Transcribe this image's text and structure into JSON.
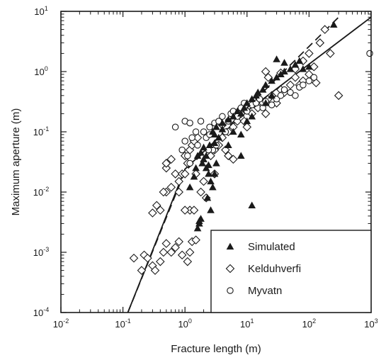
{
  "chart_data": {
    "type": "scatter",
    "title": "",
    "xlabel": "Fracture length (m)",
    "ylabel": "Maximum aperture (m)",
    "x_scale": "log",
    "y_scale": "log",
    "xlim": [
      0.01,
      1000
    ],
    "ylim": [
      0.0001,
      10
    ],
    "x_ticks": [
      {
        "value": 0.01,
        "base": "10",
        "exp": "-2"
      },
      {
        "value": 0.1,
        "base": "10",
        "exp": "-1"
      },
      {
        "value": 1,
        "base": "10",
        "exp": "0"
      },
      {
        "value": 10,
        "base": "10",
        "exp": "1"
      },
      {
        "value": 100,
        "base": "10",
        "exp": "2"
      },
      {
        "value": 1000,
        "base": "10",
        "exp": "3"
      }
    ],
    "y_ticks": [
      {
        "value": 0.0001,
        "base": "10",
        "exp": "-4"
      },
      {
        "value": 0.001,
        "base": "10",
        "exp": "-3"
      },
      {
        "value": 0.01,
        "base": "10",
        "exp": "-2"
      },
      {
        "value": 0.1,
        "base": "10",
        "exp": "-1"
      },
      {
        "value": 1,
        "base": "10",
        "exp": "0"
      },
      {
        "value": 10,
        "base": "10",
        "exp": "1"
      }
    ],
    "grid": false,
    "legend_position": "bottom-right",
    "series": [
      {
        "name": "Simulated",
        "marker": "filled-triangle",
        "points": [
          [
            1.6,
            0.0025
          ],
          [
            1.7,
            0.0033
          ],
          [
            1.8,
            0.0036
          ],
          [
            1.7,
            0.003
          ],
          [
            1.2,
            0.012
          ],
          [
            1.4,
            0.018
          ],
          [
            1.5,
            0.025
          ],
          [
            1.9,
            0.03
          ],
          [
            2.0,
            0.035
          ],
          [
            2.2,
            0.025
          ],
          [
            2.4,
            0.02
          ],
          [
            2.6,
            0.015
          ],
          [
            2.3,
            0.008
          ],
          [
            2.6,
            0.005
          ],
          [
            2.8,
            0.012
          ],
          [
            3.0,
            0.02
          ],
          [
            3.2,
            0.03
          ],
          [
            1.8,
            0.045
          ],
          [
            2.0,
            0.055
          ],
          [
            2.5,
            0.06
          ],
          [
            3.0,
            0.065
          ],
          [
            3.5,
            0.08
          ],
          [
            2.8,
            0.1
          ],
          [
            3.2,
            0.12
          ],
          [
            4.0,
            0.14
          ],
          [
            5.0,
            0.16
          ],
          [
            6.0,
            0.18
          ],
          [
            7.0,
            0.22
          ],
          [
            8.0,
            0.2
          ],
          [
            9.0,
            0.25
          ],
          [
            10,
            0.3
          ],
          [
            12,
            0.35
          ],
          [
            14,
            0.4
          ],
          [
            15,
            0.45
          ],
          [
            18,
            0.5
          ],
          [
            20,
            0.6
          ],
          [
            25,
            0.7
          ],
          [
            30,
            0.8
          ],
          [
            35,
            0.9
          ],
          [
            40,
            1.0
          ],
          [
            50,
            1.1
          ],
          [
            60,
            1.3
          ],
          [
            70,
            1.5
          ],
          [
            80,
            1.1
          ],
          [
            100,
            1.2
          ],
          [
            30,
            1.6
          ],
          [
            40,
            1.4
          ],
          [
            10,
            0.15
          ],
          [
            12,
            0.18
          ],
          [
            6.0,
            0.1
          ],
          [
            8.0,
            0.09
          ],
          [
            8.0,
            0.04
          ],
          [
            5.0,
            0.06
          ],
          [
            12,
            0.006
          ],
          [
            20,
            0.3
          ],
          [
            25,
            0.4
          ],
          [
            250,
            6.0
          ],
          [
            2.2,
            0.04
          ],
          [
            1.6,
            0.04
          ],
          [
            2.4,
            0.028
          ],
          [
            3.0,
            0.09
          ],
          [
            4.0,
            0.11
          ]
        ]
      },
      {
        "name": "Kelduhverfi",
        "marker": "open-diamond",
        "points": [
          [
            0.15,
            0.0008
          ],
          [
            0.2,
            0.0005
          ],
          [
            0.22,
            0.0009
          ],
          [
            0.25,
            0.0008
          ],
          [
            0.3,
            0.0006
          ],
          [
            0.33,
            0.0005
          ],
          [
            0.4,
            0.0007
          ],
          [
            0.45,
            0.001
          ],
          [
            0.6,
            0.001
          ],
          [
            0.7,
            0.0012
          ],
          [
            0.9,
            0.0009
          ],
          [
            1.1,
            0.0007
          ],
          [
            1.2,
            0.001
          ],
          [
            1.3,
            0.0015
          ],
          [
            1.5,
            0.0016
          ],
          [
            0.8,
            0.0015
          ],
          [
            0.5,
            0.0014
          ],
          [
            0.3,
            0.0045
          ],
          [
            0.35,
            0.006
          ],
          [
            0.4,
            0.005
          ],
          [
            0.5,
            0.01
          ],
          [
            0.6,
            0.012
          ],
          [
            0.45,
            0.01
          ],
          [
            0.8,
            0.01
          ],
          [
            0.5,
            0.025
          ],
          [
            0.5,
            0.03
          ],
          [
            0.6,
            0.035
          ],
          [
            0.7,
            0.02
          ],
          [
            0.8,
            0.015
          ],
          [
            0.9,
            0.02
          ],
          [
            1.0,
            0.02
          ],
          [
            1.1,
            0.03
          ],
          [
            1.2,
            0.05
          ],
          [
            1.3,
            0.06
          ],
          [
            1.4,
            0.07
          ],
          [
            1.0,
            0.04
          ],
          [
            1.6,
            0.08
          ],
          [
            1.5,
            0.02
          ],
          [
            1.8,
            0.01
          ],
          [
            2.0,
            0.015
          ],
          [
            2.2,
            0.008
          ],
          [
            1.2,
            0.005
          ],
          [
            1.4,
            0.005
          ],
          [
            1.0,
            0.005
          ],
          [
            3.0,
            0.02
          ],
          [
            2.6,
            0.04
          ],
          [
            3.0,
            0.05
          ],
          [
            3.5,
            0.06
          ],
          [
            4.0,
            0.08
          ],
          [
            4.5,
            0.05
          ],
          [
            5.0,
            0.1
          ],
          [
            6.0,
            0.12
          ],
          [
            7.0,
            0.15
          ],
          [
            8.0,
            0.2
          ],
          [
            10,
            0.12
          ],
          [
            12,
            0.2
          ],
          [
            15,
            0.25
          ],
          [
            18,
            0.3
          ],
          [
            20,
            0.2
          ],
          [
            22,
            0.35
          ],
          [
            25,
            0.4
          ],
          [
            30,
            0.3
          ],
          [
            35,
            0.5
          ],
          [
            40,
            0.45
          ],
          [
            50,
            0.6
          ],
          [
            60,
            0.8
          ],
          [
            70,
            0.6
          ],
          [
            80,
            0.7
          ],
          [
            100,
            0.9
          ],
          [
            120,
            1.2
          ],
          [
            20,
            1.0
          ],
          [
            22,
            0.8
          ],
          [
            35,
            0.95
          ],
          [
            60,
            1.1
          ],
          [
            80,
            1.5
          ],
          [
            100,
            2.0
          ],
          [
            130,
            0.65
          ],
          [
            150,
            3.0
          ],
          [
            180,
            5.0
          ],
          [
            220,
            2.0
          ],
          [
            300,
            0.4
          ],
          [
            5.0,
            0.04
          ],
          [
            6.0,
            0.035
          ],
          [
            4.0,
            0.13
          ],
          [
            9.0,
            0.15
          ]
        ]
      },
      {
        "name": "Myvatn",
        "marker": "open-circle",
        "points": [
          [
            0.7,
            0.12
          ],
          [
            1.0,
            0.15
          ],
          [
            1.2,
            0.14
          ],
          [
            1.8,
            0.15
          ],
          [
            1.5,
            0.1
          ],
          [
            1.3,
            0.08
          ],
          [
            1.6,
            0.06
          ],
          [
            2.0,
            0.1
          ],
          [
            2.2,
            0.08
          ],
          [
            2.5,
            0.09
          ],
          [
            1.1,
            0.04
          ],
          [
            1.2,
            0.03
          ],
          [
            0.9,
            0.05
          ],
          [
            1.0,
            0.07
          ],
          [
            2.5,
            0.12
          ],
          [
            3.0,
            0.14
          ],
          [
            3.5,
            0.15
          ],
          [
            4.0,
            0.18
          ],
          [
            4.5,
            0.1
          ],
          [
            5.0,
            0.15
          ],
          [
            5.5,
            0.2
          ],
          [
            6.0,
            0.22
          ],
          [
            7.0,
            0.18
          ],
          [
            8.0,
            0.25
          ],
          [
            9.0,
            0.3
          ],
          [
            10,
            0.22
          ],
          [
            12,
            0.28
          ],
          [
            14,
            0.3
          ],
          [
            16,
            0.35
          ],
          [
            18,
            0.25
          ],
          [
            20,
            0.32
          ],
          [
            25,
            0.28
          ],
          [
            30,
            0.35
          ],
          [
            35,
            0.4
          ],
          [
            40,
            0.5
          ],
          [
            50,
            0.45
          ],
          [
            60,
            0.4
          ],
          [
            70,
            0.55
          ],
          [
            80,
            0.6
          ],
          [
            100,
            0.7
          ],
          [
            120,
            0.8
          ],
          [
            950,
            2.0
          ],
          [
            2.8,
            0.05
          ],
          [
            3.2,
            0.06
          ],
          [
            2.4,
            0.05
          ]
        ]
      }
    ],
    "lines": [
      {
        "style": "solid",
        "points": [
          [
            0.12,
            0.0001
          ],
          [
            1.0,
            0.024
          ],
          [
            10,
            0.22
          ],
          [
            1000,
            8.0
          ]
        ]
      },
      {
        "style": "dashed",
        "points": [
          [
            0.12,
            0.0001
          ],
          [
            1.0,
            0.022
          ],
          [
            10,
            0.25
          ],
          [
            300,
            8.0
          ]
        ]
      }
    ]
  }
}
